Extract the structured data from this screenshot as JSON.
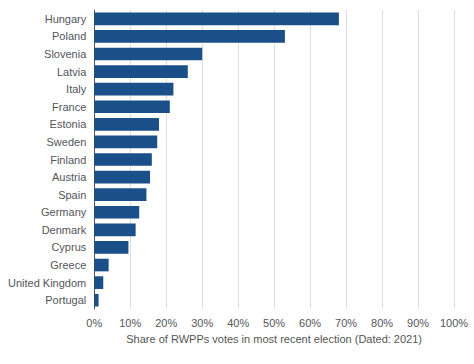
{
  "chart_data": {
    "type": "bar",
    "orientation": "horizontal",
    "categories": [
      "Hungary",
      "Poland",
      "Slovenia",
      "Latvia",
      "Italy",
      "France",
      "Estonia",
      "Sweden",
      "Finland",
      "Austria",
      "Spain",
      "Germany",
      "Denmark",
      "Cyprus",
      "Greece",
      "United Kingdom",
      "Portugal"
    ],
    "values": [
      0.68,
      0.53,
      0.3,
      0.26,
      0.22,
      0.21,
      0.18,
      0.175,
      0.16,
      0.155,
      0.145,
      0.125,
      0.115,
      0.095,
      0.04,
      0.025,
      0.012
    ],
    "color": "#1b4f8a",
    "xlabel": "Share of RWPPs votes in most recent election (Dated: 2021)",
    "xlim": [
      0,
      1.0
    ],
    "xticks": [
      {
        "value": 0.0,
        "label": "0%"
      },
      {
        "value": 0.1,
        "label": "10%"
      },
      {
        "value": 0.2,
        "label": "20%"
      },
      {
        "value": 0.3,
        "label": "30%"
      },
      {
        "value": 0.4,
        "label": "40%"
      },
      {
        "value": 0.5,
        "label": "50%"
      },
      {
        "value": 0.6,
        "label": "60%"
      },
      {
        "value": 0.7,
        "label": "70%"
      },
      {
        "value": 0.8,
        "label": "80%"
      },
      {
        "value": 0.9,
        "label": "90%"
      },
      {
        "value": 1.0,
        "label": "100%"
      }
    ],
    "grid": true
  }
}
